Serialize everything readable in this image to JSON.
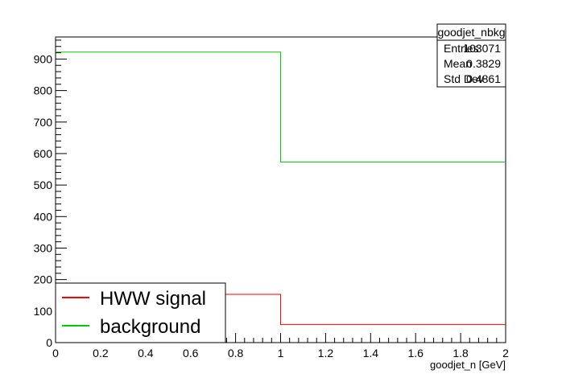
{
  "chart_data": {
    "type": "line",
    "title": "",
    "xlabel": "goodjet_n [GeV]",
    "ylabel": "",
    "xlim": [
      0,
      2
    ],
    "ylim": [
      0,
      970
    ],
    "x_ticks": [
      "0",
      "0.2",
      "0.4",
      "0.6",
      "0.8",
      "1",
      "1.2",
      "1.4",
      "1.6",
      "1.8",
      "2"
    ],
    "y_ticks": [
      "0",
      "100",
      "200",
      "300",
      "400",
      "500",
      "600",
      "700",
      "800",
      "900"
    ],
    "grid": false,
    "bin_edges": [
      0,
      1,
      2
    ],
    "series": [
      {
        "name": "HWW signal",
        "color": "#ff0000",
        "values": [
          153,
          57
        ]
      },
      {
        "name": "background",
        "color": "#00cc00",
        "values": [
          922,
          573
        ]
      }
    ],
    "stats_box": {
      "title": "goodjet_nbkg",
      "rows": [
        {
          "label": "Entries",
          "value": "103071"
        },
        {
          "label": "Mean",
          "value": "0.3829"
        },
        {
          "label": "Std Dev",
          "value": "0.4861"
        }
      ]
    },
    "legend": {
      "placement": "bottom-left",
      "entries": [
        "HWW signal",
        "background"
      ]
    }
  }
}
